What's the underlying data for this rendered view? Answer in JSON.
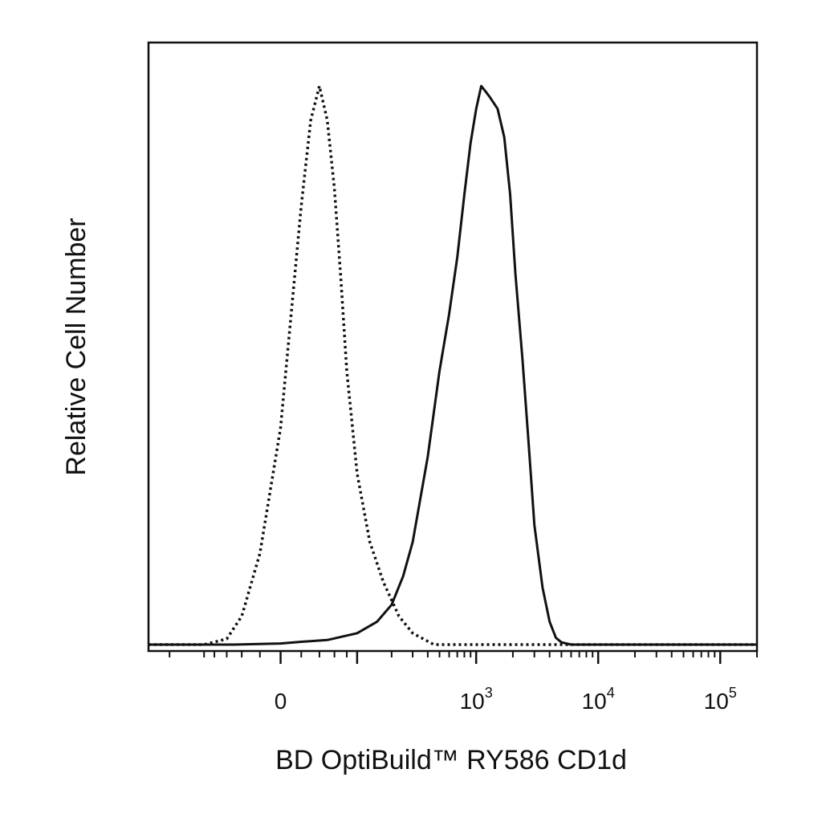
{
  "chart_data": {
    "type": "line",
    "title": "",
    "xlabel": "BD OptiBuild™ RY586 CD1d",
    "ylabel": "Relative Cell Number",
    "x_scale": "biexponential",
    "xlim": [
      -300,
      200000
    ],
    "ylim": [
      0,
      1
    ],
    "grid": false,
    "legend": "none",
    "x_ticks": [
      {
        "value": 0,
        "base": "0",
        "exp": ""
      },
      {
        "value": 1000,
        "base": "10",
        "exp": "3"
      },
      {
        "value": 10000,
        "base": "10",
        "exp": "4"
      },
      {
        "value": 100000,
        "base": "10",
        "exp": "5"
      }
    ],
    "series": [
      {
        "style": "dotted",
        "color": "#111111",
        "x": [
          -300,
          -100,
          -60,
          -40,
          -20,
          0,
          10,
          20,
          30,
          40,
          50,
          60,
          70,
          80,
          100,
          130,
          170,
          230,
          300,
          450,
          1000,
          200000
        ],
        "y": [
          0,
          0,
          0.01,
          0.05,
          0.16,
          0.38,
          0.58,
          0.77,
          0.92,
          0.98,
          0.92,
          0.8,
          0.64,
          0.48,
          0.3,
          0.18,
          0.11,
          0.05,
          0.02,
          0,
          0,
          0
        ]
      },
      {
        "style": "solid",
        "color": "#111111",
        "x": [
          -300,
          -50,
          0,
          20,
          50,
          100,
          150,
          200,
          250,
          300,
          400,
          500,
          600,
          700,
          800,
          900,
          1000,
          1100,
          1200,
          1300,
          1500,
          1700,
          1900,
          2100,
          2400,
          2700,
          3000,
          3500,
          4000,
          4500,
          5000,
          6000,
          8000,
          200000
        ],
        "y": [
          0,
          0,
          0.002,
          0.005,
          0.008,
          0.02,
          0.04,
          0.07,
          0.12,
          0.18,
          0.33,
          0.48,
          0.58,
          0.68,
          0.79,
          0.88,
          0.94,
          0.98,
          0.97,
          0.96,
          0.94,
          0.89,
          0.79,
          0.65,
          0.5,
          0.35,
          0.21,
          0.1,
          0.04,
          0.012,
          0.004,
          0,
          0,
          0
        ]
      }
    ]
  }
}
